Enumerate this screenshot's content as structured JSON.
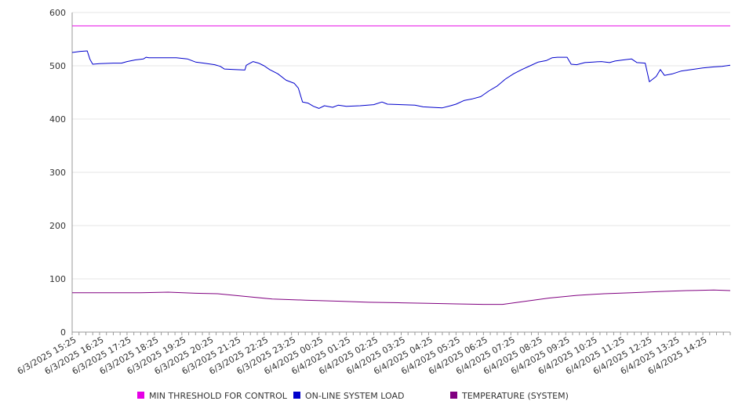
{
  "chart_data": {
    "type": "line",
    "title": "",
    "xlabel": "",
    "ylabel": "",
    "ylim": [
      0,
      600
    ],
    "yticks": [
      0,
      100,
      200,
      300,
      400,
      500,
      600
    ],
    "xtick_labels": [
      "6/3/2025 15:25",
      "6/3/2025 16:25",
      "6/3/2025 17:25",
      "6/3/2025 18:25",
      "6/3/2025 19:25",
      "6/3/2025 20:25",
      "6/3/2025 21:25",
      "6/3/2025 22:25",
      "6/3/2025 23:25",
      "6/4/2025 00:25",
      "6/4/2025 01:25",
      "6/4/2025 02:25",
      "6/4/2025 03:25",
      "6/4/2025 04:25",
      "6/4/2025 05:25",
      "6/4/2025 06:25",
      "6/4/2025 07:25",
      "6/4/2025 08:25",
      "6/4/2025 09:25",
      "6/4/2025 10:25",
      "6/4/2025 11:25",
      "6/4/2025 12:25",
      "6/4/2025 13:25",
      "6/4/2025 14:25"
    ],
    "x_hours_range": [
      0,
      24
    ],
    "grid": "horizontal",
    "legend_position": "bottom",
    "series": [
      {
        "name": "MIN THRESHOLD FOR CONTROL",
        "color": "#E600E6",
        "points": [
          [
            0,
            575
          ],
          [
            24,
            575
          ]
        ]
      },
      {
        "name": "ON-LINE SYSTEM LOAD",
        "color": "#0000CC",
        "points": [
          [
            0,
            525
          ],
          [
            0.3,
            527
          ],
          [
            0.55,
            528
          ],
          [
            0.65,
            512
          ],
          [
            0.75,
            503
          ],
          [
            1.0,
            504
          ],
          [
            1.5,
            505
          ],
          [
            1.8,
            505
          ],
          [
            2.0,
            508
          ],
          [
            2.3,
            511
          ],
          [
            2.6,
            513
          ],
          [
            2.7,
            516
          ],
          [
            2.8,
            515
          ],
          [
            3.1,
            515
          ],
          [
            3.5,
            515
          ],
          [
            3.8,
            515
          ],
          [
            4.2,
            513
          ],
          [
            4.5,
            507
          ],
          [
            4.8,
            505
          ],
          [
            5.2,
            502
          ],
          [
            5.4,
            499
          ],
          [
            5.55,
            494
          ],
          [
            5.9,
            493
          ],
          [
            6.3,
            492
          ],
          [
            6.35,
            501
          ],
          [
            6.6,
            508
          ],
          [
            6.8,
            505
          ],
          [
            7.0,
            500
          ],
          [
            7.2,
            493
          ],
          [
            7.5,
            485
          ],
          [
            7.8,
            473
          ],
          [
            8.1,
            467
          ],
          [
            8.25,
            458
          ],
          [
            8.4,
            432
          ],
          [
            8.6,
            430
          ],
          [
            8.8,
            424
          ],
          [
            9.0,
            420
          ],
          [
            9.2,
            425
          ],
          [
            9.5,
            422
          ],
          [
            9.7,
            426
          ],
          [
            10.0,
            424
          ],
          [
            10.5,
            425
          ],
          [
            11.0,
            427
          ],
          [
            11.3,
            432
          ],
          [
            11.5,
            428
          ],
          [
            12.0,
            427
          ],
          [
            12.5,
            426
          ],
          [
            12.8,
            423
          ],
          [
            13.1,
            422
          ],
          [
            13.5,
            421
          ],
          [
            13.8,
            425
          ],
          [
            14.0,
            428
          ],
          [
            14.3,
            435
          ],
          [
            14.6,
            438
          ],
          [
            14.9,
            442
          ],
          [
            15.2,
            453
          ],
          [
            15.5,
            462
          ],
          [
            15.8,
            475
          ],
          [
            16.1,
            485
          ],
          [
            16.4,
            493
          ],
          [
            16.7,
            500
          ],
          [
            17.0,
            507
          ],
          [
            17.3,
            510
          ],
          [
            17.5,
            515
          ],
          [
            17.7,
            516
          ],
          [
            18.05,
            516
          ],
          [
            18.2,
            503
          ],
          [
            18.4,
            502
          ],
          [
            18.7,
            506
          ],
          [
            19.0,
            507
          ],
          [
            19.3,
            508
          ],
          [
            19.6,
            506
          ],
          [
            19.8,
            509
          ],
          [
            20.1,
            511
          ],
          [
            20.4,
            513
          ],
          [
            20.6,
            506
          ],
          [
            20.9,
            505
          ],
          [
            21.05,
            470
          ],
          [
            21.3,
            480
          ],
          [
            21.45,
            493
          ],
          [
            21.6,
            482
          ],
          [
            21.9,
            485
          ],
          [
            22.2,
            490
          ],
          [
            22.6,
            493
          ],
          [
            23.0,
            496
          ],
          [
            23.4,
            498
          ],
          [
            23.7,
            499
          ],
          [
            24.0,
            501
          ]
        ]
      },
      {
        "name": "TEMPERATURE (SYSTEM)",
        "color": "#800080",
        "points": [
          [
            0,
            74
          ],
          [
            1.5,
            74
          ],
          [
            2.5,
            74
          ],
          [
            3.5,
            75
          ],
          [
            4.5,
            73
          ],
          [
            5.3,
            72
          ],
          [
            6.3,
            67
          ],
          [
            7.3,
            62
          ],
          [
            8.5,
            60
          ],
          [
            9.8,
            58
          ],
          [
            10.8,
            56
          ],
          [
            12.0,
            55
          ],
          [
            13.0,
            54
          ],
          [
            14.0,
            53
          ],
          [
            15.0,
            52
          ],
          [
            15.7,
            52
          ],
          [
            16.4,
            57
          ],
          [
            17.4,
            64
          ],
          [
            18.4,
            69
          ],
          [
            19.4,
            72
          ],
          [
            20.4,
            74
          ],
          [
            21.4,
            76
          ],
          [
            22.4,
            78
          ],
          [
            23.4,
            79
          ],
          [
            24.0,
            78
          ]
        ]
      }
    ]
  }
}
